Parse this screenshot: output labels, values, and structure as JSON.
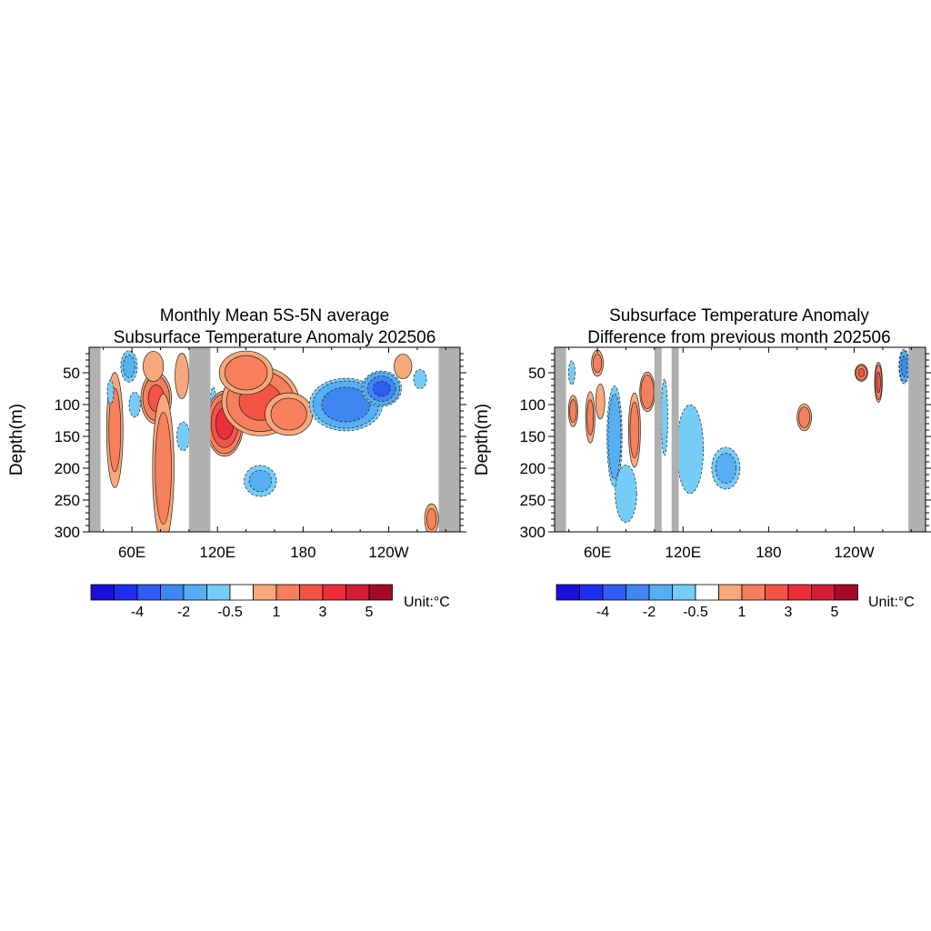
{
  "figure": {
    "width": 1024,
    "height": 1024
  },
  "colorbar": {
    "colors": [
      "#1a0fd8",
      "#1f2ff0",
      "#2f5cf2",
      "#3f86f0",
      "#57aef2",
      "#75cdf7",
      "#ffffff",
      "#f8a87a",
      "#f6805d",
      "#f35446",
      "#ef2e3c",
      "#d31d35",
      "#a40a2a"
    ],
    "tick_labels": [
      "-4",
      "-2",
      "-0.5",
      "1",
      "3",
      "5"
    ],
    "unit_label": "Unit:°C"
  },
  "chart_data": [
    {
      "type": "heatmap",
      "title_lines": [
        "Monthly Mean 5S-5N average",
        "Subsurface Temperature Anomaly 202506"
      ],
      "xlabel": "",
      "ylabel": "Depth(m)",
      "x_tick_labels": [
        "60E",
        "120E",
        "180",
        "120W"
      ],
      "y_tick_labels": [
        "50",
        "100",
        "150",
        "200",
        "250",
        "300"
      ],
      "x_range_deg_east": [
        30,
        290
      ],
      "y_range_m": [
        10,
        300
      ],
      "y_reversed": true,
      "land_masks_deg_east": [
        [
          30,
          38
        ],
        [
          100,
          115
        ],
        [
          275,
          290
        ]
      ],
      "anomaly_features": [
        {
          "lon": 48,
          "depth": 140,
          "value": 1.2,
          "rlon": 7,
          "rdep": 110
        },
        {
          "lon": 45,
          "depth": 80,
          "value": -0.8,
          "rlon": 3,
          "rdep": 25
        },
        {
          "lon": 58,
          "depth": 40,
          "value": -1.2,
          "rlon": 7,
          "rdep": 30
        },
        {
          "lon": 62,
          "depth": 100,
          "value": -1.0,
          "rlon": 5,
          "rdep": 25
        },
        {
          "lon": 77,
          "depth": 90,
          "value": 2.2,
          "rlon": 12,
          "rdep": 45
        },
        {
          "lon": 82,
          "depth": 200,
          "value": 1.3,
          "rlon": 9,
          "rdep": 140
        },
        {
          "lon": 75,
          "depth": 40,
          "value": 1.0,
          "rlon": 9,
          "rdep": 30
        },
        {
          "lon": 95,
          "depth": 55,
          "value": 1.0,
          "rlon": 6,
          "rdep": 45
        },
        {
          "lon": 96,
          "depth": 150,
          "value": -0.8,
          "rlon": 6,
          "rdep": 30
        },
        {
          "lon": 117,
          "depth": 100,
          "value": -0.6,
          "rlon": 3,
          "rdep": 40
        },
        {
          "lon": 125,
          "depth": 130,
          "value": 3.4,
          "rlon": 14,
          "rdep": 55
        },
        {
          "lon": 150,
          "depth": 95,
          "value": 2.3,
          "rlon": 30,
          "rdep": 60
        },
        {
          "lon": 140,
          "depth": 50,
          "value": 1.5,
          "rlon": 22,
          "rdep": 40
        },
        {
          "lon": 170,
          "depth": 115,
          "value": 1.3,
          "rlon": 20,
          "rdep": 40
        },
        {
          "lon": 150,
          "depth": 220,
          "value": -1.1,
          "rlon": 14,
          "rdep": 30
        },
        {
          "lon": 210,
          "depth": 100,
          "value": -2.8,
          "rlon": 28,
          "rdep": 45
        },
        {
          "lon": 235,
          "depth": 75,
          "value": -3.2,
          "rlon": 15,
          "rdep": 30
        },
        {
          "lon": 250,
          "depth": 40,
          "value": 0.9,
          "rlon": 8,
          "rdep": 25
        },
        {
          "lon": 262,
          "depth": 60,
          "value": -0.8,
          "rlon": 6,
          "rdep": 20
        },
        {
          "lon": 270,
          "depth": 280,
          "value": 1.1,
          "rlon": 6,
          "rdep": 30
        }
      ]
    },
    {
      "type": "heatmap",
      "title_lines": [
        "Subsurface Temperature Anomaly",
        "Difference from previous month 202506"
      ],
      "xlabel": "",
      "ylabel": "Depth(m)",
      "x_tick_labels": [
        "60E",
        "120E",
        "180",
        "120W"
      ],
      "y_tick_labels": [
        "50",
        "100",
        "150",
        "200",
        "250",
        "300"
      ],
      "x_range_deg_east": [
        30,
        290
      ],
      "y_range_m": [
        10,
        300
      ],
      "y_reversed": true,
      "land_masks_deg_east": [
        [
          30,
          38
        ],
        [
          100,
          105
        ],
        [
          112,
          117
        ],
        [
          278,
          290
        ]
      ],
      "anomaly_features": [
        {
          "lon": 42,
          "depth": 50,
          "value": -0.8,
          "rlon": 3,
          "rdep": 25
        },
        {
          "lon": 43,
          "depth": 110,
          "value": 1.2,
          "rlon": 4,
          "rdep": 30
        },
        {
          "lon": 55,
          "depth": 120,
          "value": 1.1,
          "rlon": 4,
          "rdep": 50
        },
        {
          "lon": 60,
          "depth": 35,
          "value": 1.2,
          "rlon": 5,
          "rdep": 25
        },
        {
          "lon": 62,
          "depth": 95,
          "value": 1.0,
          "rlon": 4,
          "rdep": 35
        },
        {
          "lon": 72,
          "depth": 150,
          "value": -1.9,
          "rlon": 6,
          "rdep": 90
        },
        {
          "lon": 80,
          "depth": 240,
          "value": -0.8,
          "rlon": 10,
          "rdep": 60
        },
        {
          "lon": 86,
          "depth": 140,
          "value": 1.3,
          "rlon": 5,
          "rdep": 70
        },
        {
          "lon": 95,
          "depth": 80,
          "value": 2.0,
          "rlon": 6,
          "rdep": 35
        },
        {
          "lon": 107,
          "depth": 120,
          "value": -0.8,
          "rlon": 3,
          "rdep": 80
        },
        {
          "lon": 125,
          "depth": 170,
          "value": -0.9,
          "rlon": 12,
          "rdep": 90
        },
        {
          "lon": 150,
          "depth": 200,
          "value": -1.2,
          "rlon": 12,
          "rdep": 40
        },
        {
          "lon": 205,
          "depth": 120,
          "value": 1.4,
          "rlon": 6,
          "rdep": 25
        },
        {
          "lon": 245,
          "depth": 50,
          "value": 2.1,
          "rlon": 5,
          "rdep": 15
        },
        {
          "lon": 257,
          "depth": 65,
          "value": 2.2,
          "rlon": 3,
          "rdep": 35
        },
        {
          "lon": 275,
          "depth": 40,
          "value": -2.5,
          "rlon": 4,
          "rdep": 30
        }
      ]
    }
  ]
}
